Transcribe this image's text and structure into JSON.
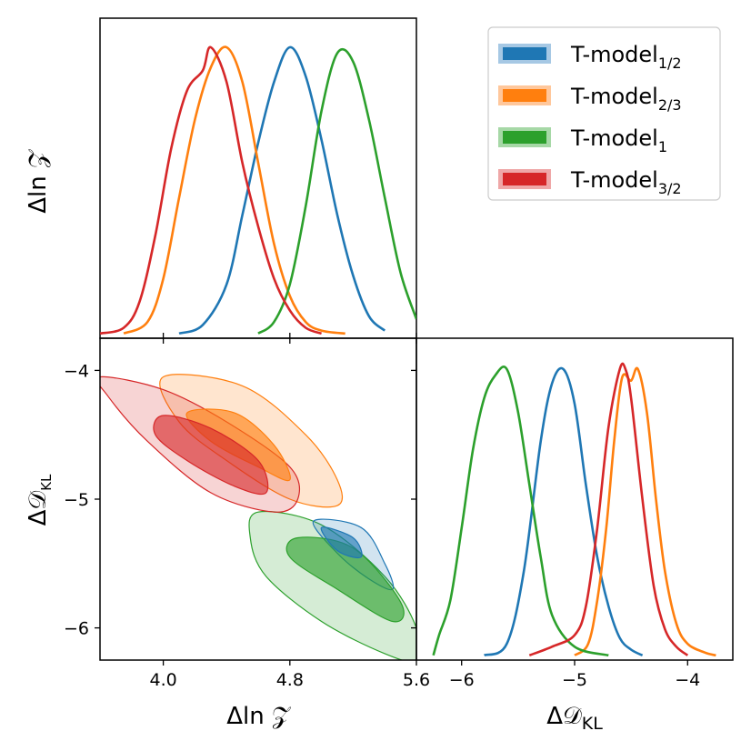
{
  "chart_data": {
    "type": "corner",
    "parameters": [
      {
        "name": "Δln ℤ",
        "label": "Δln 𝒵",
        "ticks": [
          4.0,
          4.8,
          5.6
        ],
        "tick_labels": [
          "4.0",
          "4.8",
          "5.6"
        ],
        "range": [
          3.6,
          5.6
        ]
      },
      {
        "name": "ΔD_KL",
        "label_main": "Δ𝒟",
        "label_sub": "KL",
        "ticks": [
          -6,
          -5,
          -4
        ],
        "tick_labels": [
          "−6",
          "−5",
          "−4"
        ],
        "range": [
          -6.25,
          -3.75
        ]
      }
    ],
    "legend": {
      "position": "top-right",
      "entries": [
        {
          "main": "T-model",
          "sub": "1/2",
          "color": "#1f77b4",
          "fill": "#a6c8e4"
        },
        {
          "main": "T-model",
          "sub": "2/3",
          "color": "#ff7f0e",
          "fill": "#ffc79b"
        },
        {
          "main": "T-model",
          "sub": "1",
          "color": "#2ca02c",
          "fill": "#a6d8a6"
        },
        {
          "main": "T-model",
          "sub": "3/2",
          "color": "#d62728",
          "fill": "#efa7a7"
        }
      ]
    },
    "series": [
      {
        "name": "T-model 1/2",
        "color": "#1f77b4",
        "lnz_kde": [
          [
            4.1,
            0.01
          ],
          [
            4.25,
            0.04
          ],
          [
            4.4,
            0.18
          ],
          [
            4.5,
            0.42
          ],
          [
            4.6,
            0.67
          ],
          [
            4.7,
            0.88
          ],
          [
            4.8,
            1.0
          ],
          [
            4.9,
            0.9
          ],
          [
            5.0,
            0.68
          ],
          [
            5.1,
            0.42
          ],
          [
            5.2,
            0.21
          ],
          [
            5.3,
            0.07
          ],
          [
            5.4,
            0.02
          ]
        ],
        "dkl_kde": [
          [
            -5.8,
            0.01
          ],
          [
            -5.6,
            0.05
          ],
          [
            -5.45,
            0.3
          ],
          [
            -5.3,
            0.75
          ],
          [
            -5.2,
            0.95
          ],
          [
            -5.1,
            1.0
          ],
          [
            -5.0,
            0.88
          ],
          [
            -4.9,
            0.6
          ],
          [
            -4.8,
            0.35
          ],
          [
            -4.7,
            0.18
          ],
          [
            -4.6,
            0.07
          ],
          [
            -4.5,
            0.03
          ],
          [
            -4.4,
            0.01
          ]
        ],
        "contour_inner": [
          [
            5.0,
            -5.22
          ],
          [
            5.2,
            -5.3
          ],
          [
            5.25,
            -5.45
          ],
          [
            5.1,
            -5.4
          ]
        ],
        "contour_outer": [
          [
            4.95,
            -5.17
          ],
          [
            5.25,
            -5.22
          ],
          [
            5.4,
            -5.5
          ],
          [
            5.45,
            -5.7
          ],
          [
            5.3,
            -5.62
          ],
          [
            5.1,
            -5.42
          ]
        ]
      },
      {
        "name": "T-model 2/3",
        "color": "#ff7f0e",
        "lnz_kde": [
          [
            3.75,
            0.01
          ],
          [
            3.9,
            0.05
          ],
          [
            4.0,
            0.2
          ],
          [
            4.1,
            0.48
          ],
          [
            4.2,
            0.75
          ],
          [
            4.3,
            0.93
          ],
          [
            4.4,
            1.0
          ],
          [
            4.5,
            0.88
          ],
          [
            4.6,
            0.6
          ],
          [
            4.7,
            0.32
          ],
          [
            4.8,
            0.14
          ],
          [
            4.9,
            0.05
          ],
          [
            5.0,
            0.02
          ],
          [
            5.15,
            0.01
          ]
        ],
        "dkl_kde": [
          [
            -5.0,
            0.01
          ],
          [
            -4.88,
            0.05
          ],
          [
            -4.8,
            0.2
          ],
          [
            -4.72,
            0.45
          ],
          [
            -4.65,
            0.75
          ],
          [
            -4.58,
            0.97
          ],
          [
            -4.5,
            0.96
          ],
          [
            -4.44,
            1.0
          ],
          [
            -4.36,
            0.85
          ],
          [
            -4.28,
            0.55
          ],
          [
            -4.2,
            0.3
          ],
          [
            -4.1,
            0.12
          ],
          [
            -4.0,
            0.05
          ],
          [
            -3.85,
            0.02
          ],
          [
            -3.75,
            0.01
          ]
        ],
        "contour_inner": [
          [
            4.15,
            -4.33
          ],
          [
            4.45,
            -4.33
          ],
          [
            4.7,
            -4.58
          ],
          [
            4.8,
            -4.85
          ],
          [
            4.6,
            -4.75
          ],
          [
            4.3,
            -4.55
          ]
        ],
        "contour_outer": [
          [
            4.0,
            -4.05
          ],
          [
            4.5,
            -4.12
          ],
          [
            4.9,
            -4.5
          ],
          [
            5.1,
            -4.85
          ],
          [
            5.1,
            -5.05
          ],
          [
            4.8,
            -5.0
          ],
          [
            4.4,
            -4.7
          ],
          [
            4.1,
            -4.4
          ]
        ]
      },
      {
        "name": "T-model 1",
        "color": "#2ca02c",
        "lnz_kde": [
          [
            4.6,
            0.01
          ],
          [
            4.7,
            0.05
          ],
          [
            4.8,
            0.18
          ],
          [
            4.9,
            0.45
          ],
          [
            5.0,
            0.78
          ],
          [
            5.1,
            0.98
          ],
          [
            5.2,
            0.95
          ],
          [
            5.3,
            0.75
          ],
          [
            5.4,
            0.48
          ],
          [
            5.5,
            0.22
          ],
          [
            5.6,
            0.06
          ]
        ],
        "dkl_kde": [
          [
            -6.25,
            0.01
          ],
          [
            -6.2,
            0.08
          ],
          [
            -6.1,
            0.2
          ],
          [
            -6.0,
            0.45
          ],
          [
            -5.9,
            0.72
          ],
          [
            -5.8,
            0.9
          ],
          [
            -5.7,
            0.98
          ],
          [
            -5.6,
            1.0
          ],
          [
            -5.5,
            0.85
          ],
          [
            -5.4,
            0.6
          ],
          [
            -5.3,
            0.35
          ],
          [
            -5.2,
            0.15
          ],
          [
            -5.0,
            0.04
          ],
          [
            -4.7,
            0.01
          ]
        ],
        "contour_inner": [
          [
            4.85,
            -5.3
          ],
          [
            5.2,
            -5.38
          ],
          [
            5.5,
            -5.8
          ],
          [
            5.45,
            -5.95
          ],
          [
            5.1,
            -5.7
          ],
          [
            4.8,
            -5.45
          ]
        ],
        "contour_outer": [
          [
            4.6,
            -5.1
          ],
          [
            5.0,
            -5.2
          ],
          [
            5.4,
            -5.6
          ],
          [
            5.6,
            -6.0
          ],
          [
            5.6,
            -6.25
          ],
          [
            5.4,
            -6.2
          ],
          [
            5.0,
            -5.95
          ],
          [
            4.65,
            -5.6
          ],
          [
            4.55,
            -5.3
          ]
        ]
      },
      {
        "name": "T-model 3/2",
        "color": "#d62728",
        "lnz_kde": [
          [
            3.6,
            0.01
          ],
          [
            3.75,
            0.03
          ],
          [
            3.85,
            0.12
          ],
          [
            3.95,
            0.35
          ],
          [
            4.05,
            0.65
          ],
          [
            4.15,
            0.85
          ],
          [
            4.25,
            0.92
          ],
          [
            4.3,
            1.0
          ],
          [
            4.4,
            0.88
          ],
          [
            4.5,
            0.6
          ],
          [
            4.6,
            0.38
          ],
          [
            4.7,
            0.2
          ],
          [
            4.8,
            0.09
          ],
          [
            4.9,
            0.03
          ],
          [
            5.0,
            0.01
          ]
        ],
        "dkl_kde": [
          [
            -5.4,
            0.01
          ],
          [
            -5.2,
            0.04
          ],
          [
            -5.0,
            0.08
          ],
          [
            -4.9,
            0.18
          ],
          [
            -4.8,
            0.45
          ],
          [
            -4.7,
            0.8
          ],
          [
            -4.6,
            1.0
          ],
          [
            -4.55,
            1.0
          ],
          [
            -4.5,
            0.9
          ],
          [
            -4.4,
            0.55
          ],
          [
            -4.3,
            0.25
          ],
          [
            -4.2,
            0.1
          ],
          [
            -4.1,
            0.04
          ],
          [
            -4.0,
            0.01
          ]
        ],
        "contour_inner": [
          [
            4.0,
            -4.35
          ],
          [
            4.3,
            -4.45
          ],
          [
            4.6,
            -4.7
          ],
          [
            4.65,
            -4.95
          ],
          [
            4.45,
            -4.9
          ],
          [
            4.15,
            -4.7
          ],
          [
            3.95,
            -4.5
          ]
        ],
        "contour_outer": [
          [
            3.6,
            -4.05
          ],
          [
            4.0,
            -4.15
          ],
          [
            4.4,
            -4.4
          ],
          [
            4.8,
            -4.75
          ],
          [
            4.85,
            -5.0
          ],
          [
            4.7,
            -5.1
          ],
          [
            4.3,
            -4.95
          ],
          [
            3.9,
            -4.55
          ],
          [
            3.65,
            -4.2
          ]
        ]
      }
    ]
  }
}
